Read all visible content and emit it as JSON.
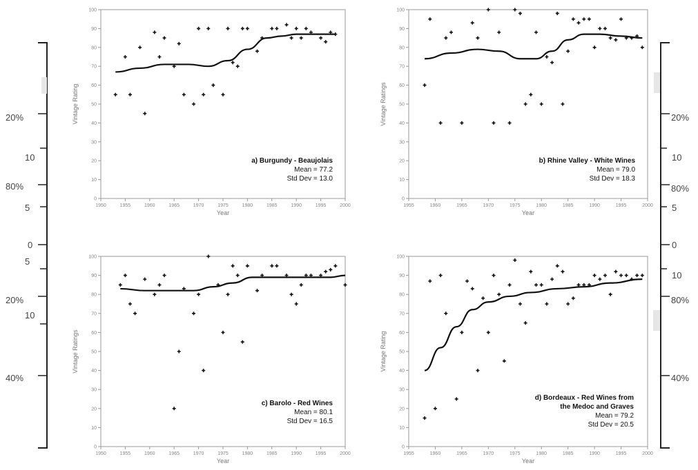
{
  "chart_data": [
    {
      "type": "scatter",
      "title": "a) Burgundy - Beaujolais",
      "stats": [
        "Mean = 77.2",
        "Std Dev = 13.0"
      ],
      "xlabel": "Year",
      "ylabel": "Vintage Rating",
      "xlim": [
        1950,
        2000
      ],
      "ylim": [
        0,
        100
      ],
      "xticks": [
        1950,
        1955,
        1960,
        1965,
        1970,
        1975,
        1980,
        1985,
        1990,
        1995,
        2000
      ],
      "yticks": [
        0,
        10,
        20,
        30,
        40,
        50,
        60,
        70,
        80,
        90,
        100
      ],
      "series": [
        {
          "kind": "points",
          "x": [
            1953,
            1955,
            1956,
            1958,
            1959,
            1961,
            1962,
            1963,
            1965,
            1966,
            1967,
            1969,
            1970,
            1971,
            1972,
            1973,
            1975,
            1976,
            1977,
            1978,
            1979,
            1980,
            1982,
            1983,
            1985,
            1986,
            1988,
            1989,
            1990,
            1991,
            1992,
            1993,
            1995,
            1996,
            1997,
            1998
          ],
          "y": [
            55,
            75,
            55,
            80,
            45,
            88,
            75,
            85,
            70,
            82,
            55,
            50,
            90,
            55,
            90,
            60,
            55,
            90,
            72,
            70,
            90,
            90,
            78,
            85,
            90,
            90,
            92,
            85,
            90,
            85,
            90,
            88,
            85,
            83,
            88,
            87
          ]
        },
        {
          "kind": "smooth",
          "x": [
            1953,
            1958,
            1963,
            1968,
            1972,
            1976,
            1980,
            1984,
            1987,
            1990,
            1994,
            1998
          ],
          "y": [
            67,
            69,
            71,
            71,
            70,
            73,
            79,
            85,
            86,
            87,
            87,
            87
          ]
        }
      ]
    },
    {
      "type": "scatter",
      "title": "b) Rhine Valley - White Wines",
      "stats": [
        "Mean = 79.0",
        "Std Dev = 18.3"
      ],
      "xlabel": "Year",
      "ylabel": "Vintage Ratings",
      "xlim": [
        1955,
        2000
      ],
      "ylim": [
        0,
        100
      ],
      "xticks": [
        1955,
        1960,
        1965,
        1970,
        1975,
        1980,
        1985,
        1990,
        1995,
        2000
      ],
      "yticks": [
        0,
        10,
        20,
        30,
        40,
        50,
        60,
        70,
        80,
        90,
        100
      ],
      "series": [
        {
          "kind": "points",
          "x": [
            1958,
            1959,
            1961,
            1962,
            1963,
            1965,
            1967,
            1968,
            1970,
            1971,
            1972,
            1974,
            1975,
            1976,
            1977,
            1978,
            1979,
            1980,
            1981,
            1982,
            1983,
            1984,
            1985,
            1986,
            1987,
            1988,
            1989,
            1990,
            1991,
            1992,
            1993,
            1994,
            1995,
            1996,
            1997,
            1998,
            1999
          ],
          "y": [
            60,
            95,
            40,
            85,
            88,
            40,
            93,
            85,
            100,
            40,
            88,
            40,
            100,
            98,
            50,
            55,
            88,
            50,
            75,
            72,
            98,
            50,
            78,
            95,
            93,
            95,
            95,
            80,
            90,
            90,
            85,
            84,
            95,
            85,
            85,
            86,
            80
          ]
        },
        {
          "kind": "smooth",
          "x": [
            1958,
            1963,
            1968,
            1972,
            1976,
            1979,
            1982,
            1985,
            1988,
            1991,
            1995,
            1999
          ],
          "y": [
            74,
            77,
            79,
            78,
            74,
            74,
            78,
            84,
            87,
            87,
            86,
            85
          ]
        }
      ]
    },
    {
      "type": "scatter",
      "title": "c) Barolo - Red Wines",
      "stats": [
        "Mean = 80.1",
        "Std Dev = 16.5"
      ],
      "xlabel": "Year",
      "ylabel": "Vintage Ratings",
      "xlim": [
        1950,
        2000
      ],
      "ylim": [
        0,
        100
      ],
      "xticks": [
        1950,
        1955,
        1960,
        1965,
        1970,
        1975,
        1980,
        1985,
        1990,
        1995,
        2000
      ],
      "yticks": [
        0,
        10,
        20,
        30,
        40,
        50,
        60,
        70,
        80,
        90,
        100
      ],
      "series": [
        {
          "kind": "points",
          "x": [
            1954,
            1955,
            1956,
            1957,
            1959,
            1961,
            1962,
            1963,
            1965,
            1966,
            1967,
            1969,
            1970,
            1971,
            1972,
            1974,
            1975,
            1976,
            1977,
            1978,
            1979,
            1980,
            1982,
            1983,
            1985,
            1986,
            1988,
            1989,
            1990,
            1991,
            1992,
            1993,
            1995,
            1996,
            1997,
            1998,
            2000
          ],
          "y": [
            85,
            90,
            75,
            70,
            88,
            80,
            85,
            90,
            20,
            50,
            83,
            70,
            80,
            40,
            100,
            85,
            60,
            80,
            95,
            90,
            55,
            95,
            82,
            90,
            95,
            95,
            90,
            80,
            75,
            85,
            90,
            90,
            90,
            92,
            93,
            95,
            85
          ]
        },
        {
          "kind": "smooth",
          "x": [
            1954,
            1959,
            1964,
            1969,
            1973,
            1977,
            1981,
            1985,
            1989,
            1993,
            1997,
            2000
          ],
          "y": [
            83,
            82,
            82,
            82,
            84,
            86,
            89,
            89,
            89,
            89,
            89,
            90
          ]
        }
      ]
    },
    {
      "type": "scatter",
      "title": "d) Bordeaux - Red Wines from the Medoc and Graves",
      "stats": [
        "Mean = 79.2",
        "Std Dev = 20.5"
      ],
      "xlabel": "Year",
      "ylabel": "Vintage Rating",
      "xlim": [
        1955,
        2000
      ],
      "ylim": [
        0,
        100
      ],
      "xticks": [
        1955,
        1960,
        1965,
        1970,
        1975,
        1980,
        1985,
        1990,
        1995,
        2000
      ],
      "yticks": [
        0,
        10,
        20,
        30,
        40,
        50,
        60,
        70,
        80,
        90,
        100
      ],
      "series": [
        {
          "kind": "points",
          "x": [
            1958,
            1959,
            1960,
            1961,
            1962,
            1964,
            1965,
            1966,
            1967,
            1968,
            1969,
            1970,
            1971,
            1972,
            1973,
            1974,
            1975,
            1976,
            1977,
            1978,
            1979,
            1980,
            1981,
            1982,
            1983,
            1984,
            1985,
            1986,
            1987,
            1988,
            1989,
            1990,
            1991,
            1992,
            1993,
            1994,
            1995,
            1996,
            1997,
            1998,
            1999
          ],
          "y": [
            15,
            87,
            20,
            90,
            70,
            25,
            60,
            87,
            83,
            40,
            78,
            60,
            90,
            80,
            45,
            85,
            98,
            75,
            65,
            92,
            85,
            85,
            75,
            88,
            95,
            92,
            75,
            78,
            85,
            85,
            85,
            90,
            88,
            90,
            80,
            92,
            90,
            90,
            88,
            90,
            90
          ]
        },
        {
          "kind": "smooth",
          "x": [
            1958,
            1961,
            1964,
            1967,
            1970,
            1974,
            1978,
            1983,
            1988,
            1993,
            1999
          ],
          "y": [
            40,
            52,
            63,
            72,
            76,
            79,
            81,
            83,
            84,
            86,
            88
          ]
        }
      ]
    }
  ],
  "margin_labels": {
    "left": [
      "20%",
      "10",
      "80%",
      "5",
      "0",
      "5",
      "20%",
      "10",
      "40%"
    ],
    "right": [
      "20%",
      "10",
      "80%",
      "5",
      "0",
      "10",
      "80%",
      "40%"
    ]
  }
}
